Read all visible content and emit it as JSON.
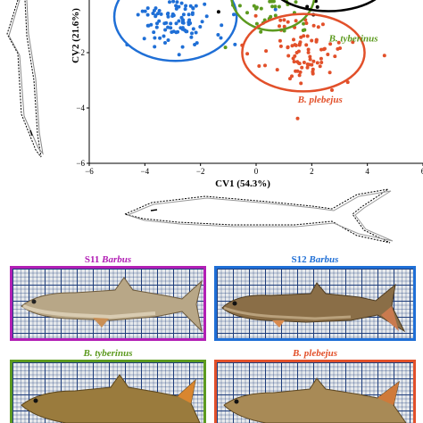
{
  "chart_data": {
    "type": "scatter",
    "xlabel": "CV1 (54.3%)",
    "ylabel": "CV2 (21.6%)",
    "xlim": [
      -6,
      6
    ],
    "ylim": [
      -6,
      1.5
    ],
    "xticks": [
      -6,
      -4,
      -2,
      0,
      2,
      4,
      6
    ],
    "yticks": [
      -6,
      -4,
      -2
    ],
    "xtick_labels": [
      "−6",
      "−4",
      "−2",
      "0",
      "2",
      "4",
      "6"
    ],
    "ytick_labels": [
      "−6",
      "−4",
      "−2"
    ],
    "annotations": [
      {
        "text": "B. tyberinus",
        "x": 3.5,
        "y": -1.6,
        "color": "#5c9a1f"
      },
      {
        "text": "B. plebejus",
        "x": 2.3,
        "y": -3.8,
        "color": "#e2502a"
      }
    ],
    "groups": [
      {
        "color": "#1f6fd6",
        "ellipse": {
          "cx": -2.9,
          "cy": -0.7,
          "rx": 2.2,
          "ry": 1.6
        }
      },
      {
        "color": "#b21fb5",
        "ellipse": {
          "cx": -1.2,
          "cy": 1.1,
          "rx": 1.6,
          "ry": 1.1
        }
      },
      {
        "color": "#5c9a1f",
        "ellipse": {
          "cx": 0.6,
          "cy": 0.1,
          "rx": 1.5,
          "ry": 1.3
        }
      },
      {
        "color": "#000000",
        "ellipse": {
          "cx": 2.6,
          "cy": 0.7,
          "rx": 2.2,
          "ry": 1.2
        }
      },
      {
        "color": "#e2502a",
        "ellipse": {
          "cx": 1.7,
          "cy": -2.0,
          "rx": 2.2,
          "ry": 1.4
        }
      }
    ]
  },
  "panels": [
    {
      "prefix": "S11 ",
      "genus": "Barbus",
      "color": "#b21fb5",
      "title_color": "#b21fb5"
    },
    {
      "prefix": "S12 ",
      "genus": "Barbus",
      "color": "#1f6fd6",
      "title_color": "#1f6fd6"
    },
    {
      "prefix": "",
      "genus": "B. tyberinus",
      "color": "#5c9a1f",
      "title_color": "#5c9a1f"
    },
    {
      "prefix": "",
      "genus": "B. plebejus",
      "color": "#e2502a",
      "title_color": "#e2502a"
    }
  ]
}
